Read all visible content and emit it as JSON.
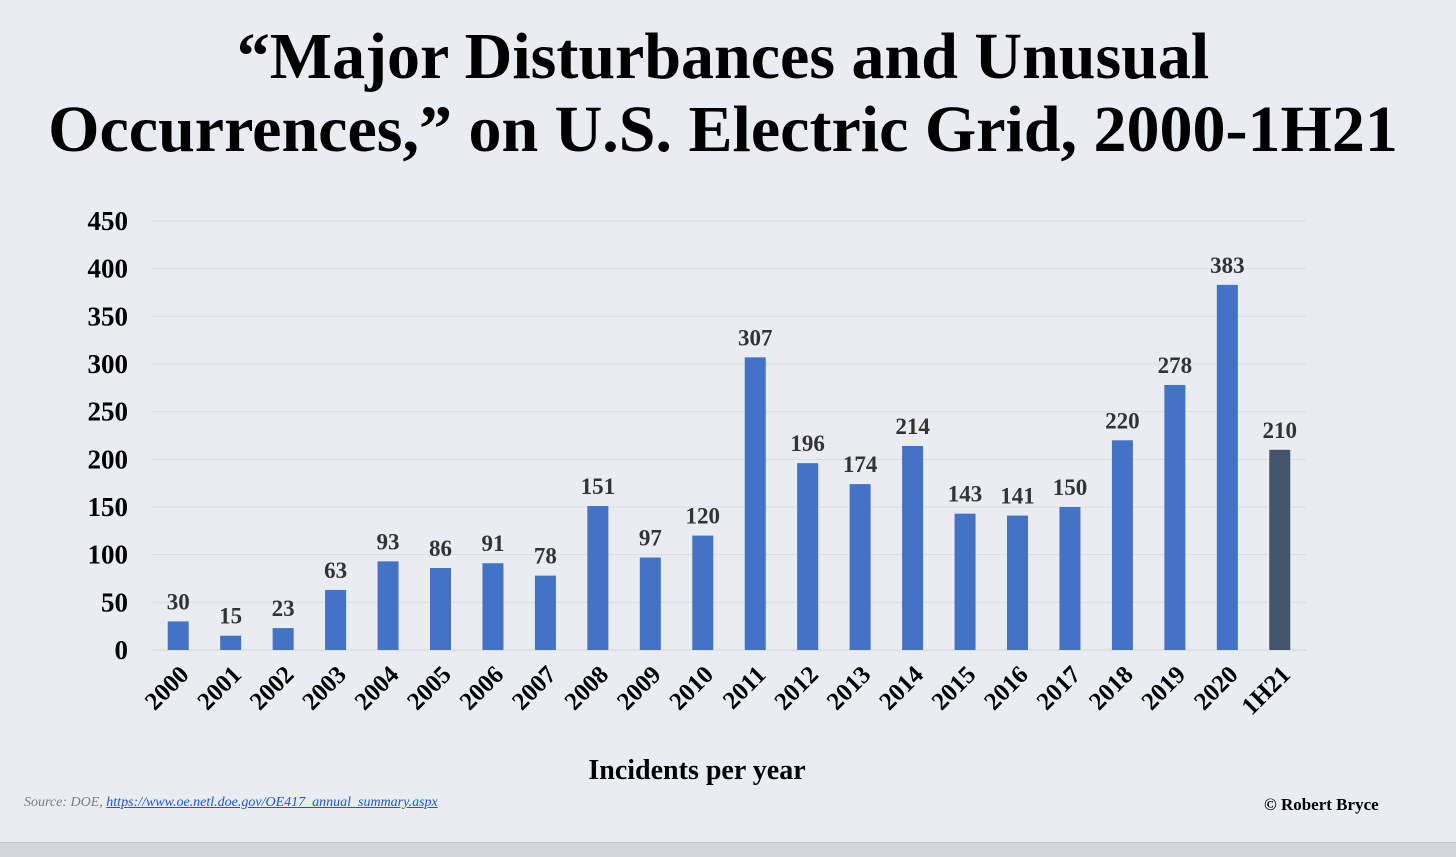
{
  "chart_data": {
    "type": "bar",
    "title_line1": "“Major Disturbances and Unusual",
    "title_line2": "Occurrences,” on U.S. Electric Grid, 2000-1H21",
    "categories": [
      "2000",
      "2001",
      "2002",
      "2003",
      "2004",
      "2005",
      "2006",
      "2007",
      "2008",
      "2009",
      "2010",
      "2011",
      "2012",
      "2013",
      "2014",
      "2015",
      "2016",
      "2017",
      "2018",
      "2019",
      "2020",
      "1H21"
    ],
    "values": [
      30,
      15,
      23,
      63,
      93,
      86,
      91,
      78,
      151,
      97,
      120,
      307,
      196,
      174,
      214,
      143,
      141,
      150,
      220,
      278,
      383,
      210
    ],
    "xlabel": "Incidents per year",
    "ylabel": "",
    "ylim": [
      0,
      450
    ],
    "yticks": [
      0,
      50,
      100,
      150,
      200,
      250,
      300,
      350,
      400,
      450
    ],
    "grid": true,
    "data_labels": true,
    "colors": {
      "bar": "#4472c4",
      "highlight_bar": "#44546a",
      "highlight_category": "1H21",
      "grid": "#d9dde3"
    }
  },
  "footer": {
    "source_prefix": "Source: DOE, ",
    "source_link": "https://www.oe.netl.doe.gov/OE417_annual_summary.aspx",
    "credit": "© Robert Bryce"
  }
}
